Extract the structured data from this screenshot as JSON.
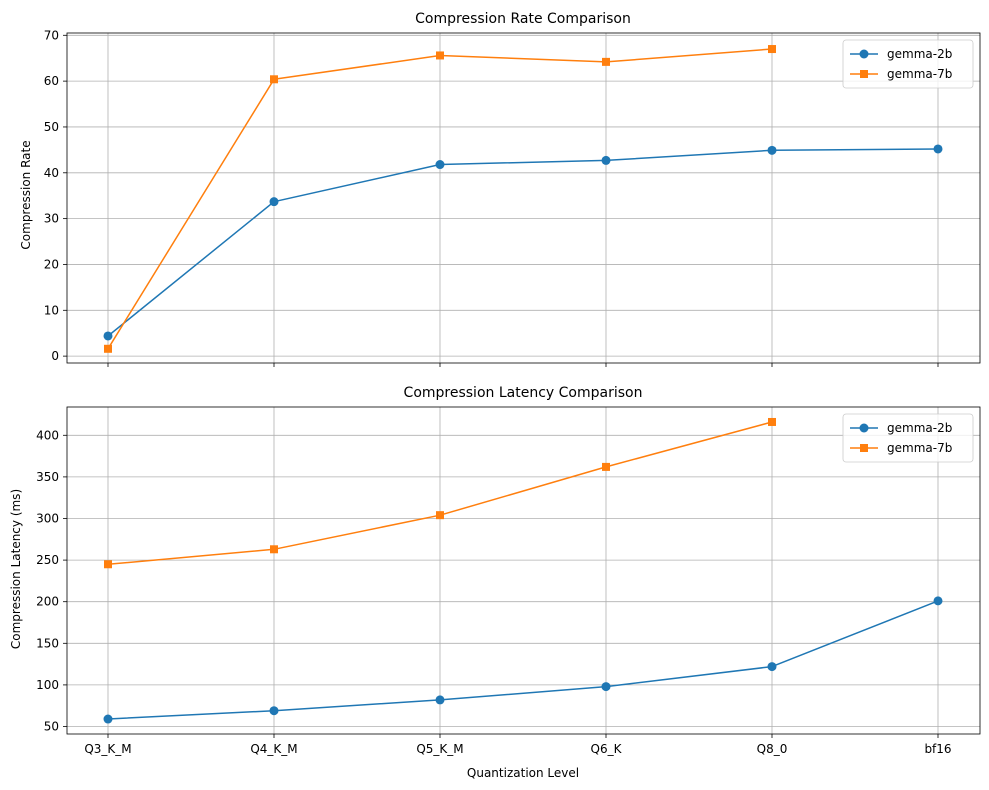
{
  "chart_data": [
    {
      "type": "line",
      "title": "Compression Rate Comparison",
      "xlabel": "",
      "ylabel": "Compression Rate",
      "categories": [
        "Q3_K_M",
        "Q4_K_M",
        "Q5_K_M",
        "Q6_K",
        "Q8_0",
        "bf16"
      ],
      "ylim": [
        -1.5,
        70.5
      ],
      "yticks": [
        0,
        10,
        20,
        30,
        40,
        50,
        60,
        70
      ],
      "show_xtick_labels": false,
      "grid": true,
      "legend": "top-right",
      "series": [
        {
          "name": "gemma-2b",
          "color": "#1f77b4",
          "marker": "circle",
          "values": [
            4.4,
            33.7,
            41.8,
            42.7,
            44.9,
            45.2
          ]
        },
        {
          "name": "gemma-7b",
          "color": "#ff7f0e",
          "marker": "square",
          "values": [
            1.6,
            60.4,
            65.6,
            64.2,
            67.0,
            null
          ]
        }
      ]
    },
    {
      "type": "line",
      "title": "Compression Latency Comparison",
      "xlabel": "Quantization Level",
      "ylabel": "Compression Latency (ms)",
      "categories": [
        "Q3_K_M",
        "Q4_K_M",
        "Q5_K_M",
        "Q6_K",
        "Q8_0",
        "bf16"
      ],
      "ylim": [
        41,
        434
      ],
      "yticks": [
        50,
        100,
        150,
        200,
        250,
        300,
        350,
        400
      ],
      "show_xtick_labels": true,
      "grid": true,
      "legend": "top-right",
      "series": [
        {
          "name": "gemma-2b",
          "color": "#1f77b4",
          "marker": "circle",
          "values": [
            59,
            69,
            82,
            98,
            122,
            201
          ]
        },
        {
          "name": "gemma-7b",
          "color": "#ff7f0e",
          "marker": "square",
          "values": [
            245,
            263,
            304,
            362,
            416,
            null
          ]
        }
      ]
    }
  ]
}
